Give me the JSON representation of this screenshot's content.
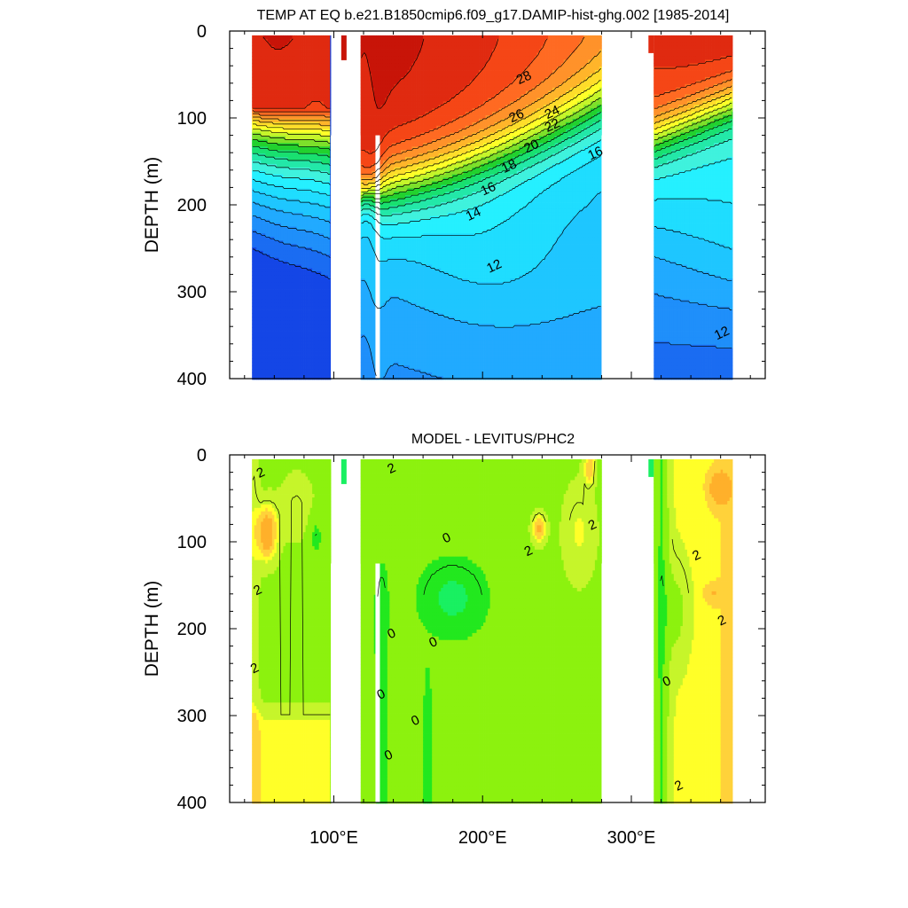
{
  "chart_data": [
    {
      "type": "heatmap",
      "title": "TEMP AT EQ b.e21.B1850cmip6.f09_g17.DAMIP-hist-ghg.002 [1985-2014]",
      "ylabel": "DEPTH (m)",
      "xlabel": "",
      "xlim": [
        30,
        390
      ],
      "ylim": [
        400,
        0
      ],
      "yticks": [
        "0",
        "100",
        "200",
        "300",
        "400"
      ],
      "xticks": [
        {
          "value": 100,
          "text": "100°E"
        },
        {
          "value": 200,
          "text": "200°E"
        },
        {
          "value": 300,
          "text": "300°E"
        }
      ],
      "ocean_segments": [
        [
          45,
          98
        ],
        [
          118,
          280
        ],
        [
          315,
          368
        ]
      ],
      "land_gaps": [
        [
          98,
          118
        ],
        [
          128,
          131
        ],
        [
          280,
          315
        ]
      ],
      "contour_levels": [
        10,
        11,
        12,
        13,
        14,
        15,
        16,
        17,
        18,
        19,
        20,
        21,
        22,
        23,
        24,
        25,
        26,
        27,
        28,
        29
      ],
      "contour_labels": [
        {
          "text": "28",
          "lon": 229,
          "depth": 58
        },
        {
          "text": "26",
          "lon": 224,
          "depth": 102
        },
        {
          "text": "24",
          "lon": 248,
          "depth": 98
        },
        {
          "text": "22",
          "lon": 248,
          "depth": 113
        },
        {
          "text": "20",
          "lon": 234,
          "depth": 137
        },
        {
          "text": "18",
          "lon": 219,
          "depth": 160
        },
        {
          "text": "16",
          "lon": 205,
          "depth": 186
        },
        {
          "text": "14",
          "lon": 195,
          "depth": 215
        },
        {
          "text": "12",
          "lon": 209,
          "depth": 275
        },
        {
          "text": "16",
          "lon": 277,
          "depth": 145
        },
        {
          "text": "12",
          "lon": 362,
          "depth": 352
        }
      ]
    },
    {
      "type": "heatmap",
      "title": "MODEL - LEVITUS/PHC2",
      "ylabel": "DEPTH (m)",
      "xlabel": "",
      "xlim": [
        30,
        390
      ],
      "ylim": [
        400,
        0
      ],
      "yticks": [
        "0",
        "100",
        "200",
        "300",
        "400"
      ],
      "xticks": [
        {
          "value": 100,
          "text": "100°E"
        },
        {
          "value": 200,
          "text": "200°E"
        },
        {
          "value": 300,
          "text": "300°E"
        }
      ],
      "ocean_segments": [
        [
          45,
          98
        ],
        [
          118,
          280
        ],
        [
          315,
          368
        ]
      ],
      "land_gaps": [
        [
          98,
          118
        ],
        [
          128,
          131
        ],
        [
          280,
          315
        ]
      ],
      "contour_levels": [
        -2,
        0,
        2,
        4
      ],
      "contour_labels": [
        {
          "text": "2",
          "lon": 52,
          "depth": 25
        },
        {
          "text": "2",
          "lon": 50,
          "depth": 160
        },
        {
          "text": "2",
          "lon": 48,
          "depth": 250
        },
        {
          "text": "2",
          "lon": 140,
          "depth": 20
        },
        {
          "text": "0",
          "lon": 177,
          "depth": 100
        },
        {
          "text": "0",
          "lon": 140,
          "depth": 210
        },
        {
          "text": "0",
          "lon": 168,
          "depth": 220
        },
        {
          "text": "0",
          "lon": 133,
          "depth": 280
        },
        {
          "text": "0",
          "lon": 156,
          "depth": 310
        },
        {
          "text": "0",
          "lon": 138,
          "depth": 350
        },
        {
          "text": "2",
          "lon": 232,
          "depth": 115
        },
        {
          "text": "2",
          "lon": 275,
          "depth": 85
        },
        {
          "text": "2",
          "lon": 345,
          "depth": 120
        },
        {
          "text": "2",
          "lon": 362,
          "depth": 195
        },
        {
          "text": "0",
          "lon": 325,
          "depth": 265
        },
        {
          "text": "2",
          "lon": 333,
          "depth": 385
        }
      ]
    }
  ]
}
